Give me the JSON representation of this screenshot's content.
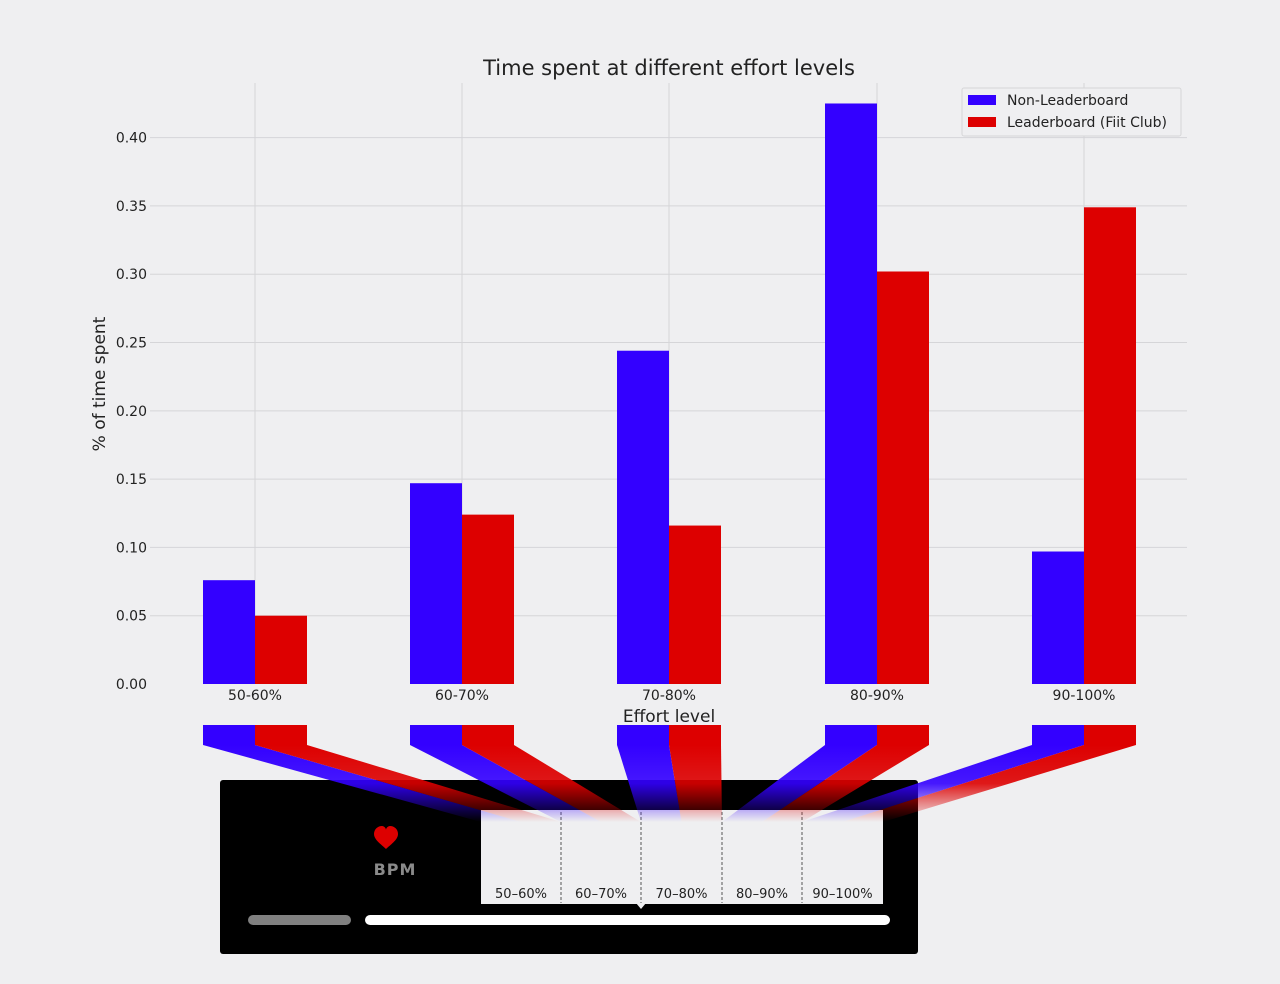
{
  "chart_data": {
    "type": "bar",
    "title": "Time spent at different effort levels",
    "xlabel": "Effort level",
    "ylabel": "% of time spent",
    "categories": [
      "50-60%",
      "60-70%",
      "70-80%",
      "80-90%",
      "90-100%"
    ],
    "series": [
      {
        "name": "Non-Leaderboard",
        "color": "#3300ff",
        "values": [
          0.076,
          0.147,
          0.244,
          0.425,
          0.097
        ]
      },
      {
        "name": "Leaderboard (Fiit Club)",
        "color": "#dd0000",
        "values": [
          0.05,
          0.124,
          0.116,
          0.302,
          0.349
        ]
      }
    ],
    "ylim": [
      0,
      0.44
    ],
    "yticks": [
      0.0,
      0.05,
      0.1,
      0.15,
      0.2,
      0.25,
      0.3,
      0.35,
      0.4
    ],
    "ytick_labels": [
      "0.00",
      "0.05",
      "0.10",
      "0.15",
      "0.20",
      "0.25",
      "0.30",
      "0.35",
      "0.40"
    ],
    "grid": true,
    "legend_position": "top-right"
  },
  "device": {
    "heart_icon": "heart-icon",
    "bpm_label": "BPM",
    "zone_labels": [
      "50–60%",
      "60–70%",
      "70–80%",
      "80–90%",
      "90–100%"
    ],
    "progress_fraction": 1.0,
    "colors": {
      "screen": "#000000",
      "heart": "#dd0000",
      "bpm_text": "#8a8a8a",
      "inactive_bar": "#808080",
      "active_bar": "#ffffff"
    }
  }
}
